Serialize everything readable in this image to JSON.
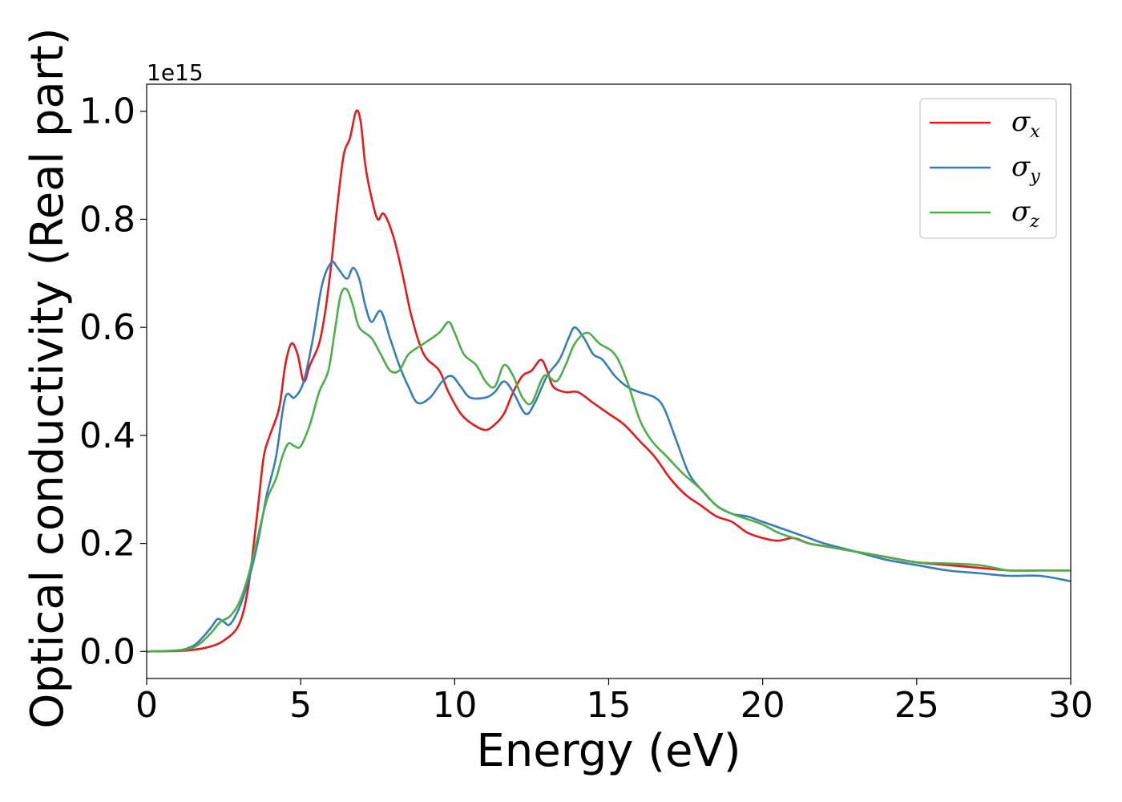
{
  "chart_data": {
    "type": "line",
    "xlabel": "Energy (eV)",
    "ylabel": "Optical conductivity (Real part)",
    "y_offset_label": "1e15",
    "xlim": [
      0,
      30
    ],
    "ylim": [
      -0.05,
      1.05
    ],
    "xticks": [
      0,
      5,
      10,
      15,
      20,
      25,
      30
    ],
    "yticks": [
      0.0,
      0.2,
      0.4,
      0.6,
      0.8,
      1.0
    ],
    "xtick_labels": [
      "0",
      "5",
      "10",
      "15",
      "20",
      "25",
      "30"
    ],
    "ytick_labels": [
      "0.0",
      "0.2",
      "0.4",
      "0.6",
      "0.8",
      "1.0"
    ],
    "grid": false,
    "legend_position": "top-right",
    "series": [
      {
        "symbol": "σ",
        "subscript": "x",
        "color": "#e41a1c",
        "points": [
          [
            0,
            0
          ],
          [
            1,
            0.001
          ],
          [
            1.5,
            0.003
          ],
          [
            2,
            0.008
          ],
          [
            2.5,
            0.02
          ],
          [
            3,
            0.05
          ],
          [
            3.3,
            0.12
          ],
          [
            3.6,
            0.26
          ],
          [
            3.8,
            0.36
          ],
          [
            4,
            0.4
          ],
          [
            4.3,
            0.45
          ],
          [
            4.5,
            0.53
          ],
          [
            4.7,
            0.57
          ],
          [
            4.9,
            0.55
          ],
          [
            5.1,
            0.5
          ],
          [
            5.3,
            0.53
          ],
          [
            5.6,
            0.57
          ],
          [
            5.8,
            0.63
          ],
          [
            6,
            0.72
          ],
          [
            6.2,
            0.83
          ],
          [
            6.4,
            0.92
          ],
          [
            6.6,
            0.95
          ],
          [
            6.8,
            1.0
          ],
          [
            6.95,
            0.98
          ],
          [
            7.1,
            0.9
          ],
          [
            7.3,
            0.84
          ],
          [
            7.5,
            0.8
          ],
          [
            7.7,
            0.81
          ],
          [
            8,
            0.77
          ],
          [
            8.3,
            0.7
          ],
          [
            8.6,
            0.62
          ],
          [
            9,
            0.55
          ],
          [
            9.5,
            0.52
          ],
          [
            9.8,
            0.48
          ],
          [
            10.2,
            0.44
          ],
          [
            10.6,
            0.42
          ],
          [
            11,
            0.41
          ],
          [
            11.3,
            0.42
          ],
          [
            11.6,
            0.44
          ],
          [
            11.9,
            0.48
          ],
          [
            12.2,
            0.51
          ],
          [
            12.5,
            0.52
          ],
          [
            12.8,
            0.54
          ],
          [
            13,
            0.52
          ],
          [
            13.2,
            0.49
          ],
          [
            13.6,
            0.48
          ],
          [
            14,
            0.48
          ],
          [
            14.5,
            0.46
          ],
          [
            15,
            0.44
          ],
          [
            15.5,
            0.42
          ],
          [
            16,
            0.39
          ],
          [
            16.5,
            0.36
          ],
          [
            17,
            0.32
          ],
          [
            17.5,
            0.29
          ],
          [
            18,
            0.27
          ],
          [
            18.5,
            0.25
          ],
          [
            19,
            0.24
          ],
          [
            19.5,
            0.22
          ],
          [
            20,
            0.21
          ],
          [
            20.5,
            0.205
          ],
          [
            21,
            0.21
          ],
          [
            21.5,
            0.2
          ],
          [
            22,
            0.195
          ],
          [
            23,
            0.185
          ],
          [
            24,
            0.175
          ],
          [
            25,
            0.165
          ],
          [
            26,
            0.16
          ],
          [
            27,
            0.155
          ],
          [
            28,
            0.15
          ],
          [
            29,
            0.15
          ],
          [
            30,
            0.15
          ]
        ]
      },
      {
        "symbol": "σ",
        "subscript": "y",
        "color": "#377eb8",
        "points": [
          [
            0,
            0
          ],
          [
            1,
            0.002
          ],
          [
            1.5,
            0.01
          ],
          [
            1.8,
            0.025
          ],
          [
            2.1,
            0.045
          ],
          [
            2.3,
            0.06
          ],
          [
            2.5,
            0.055
          ],
          [
            2.7,
            0.05
          ],
          [
            3,
            0.08
          ],
          [
            3.3,
            0.13
          ],
          [
            3.6,
            0.2
          ],
          [
            3.9,
            0.29
          ],
          [
            4.2,
            0.36
          ],
          [
            4.5,
            0.47
          ],
          [
            4.8,
            0.47
          ],
          [
            5.1,
            0.5
          ],
          [
            5.4,
            0.58
          ],
          [
            5.7,
            0.68
          ],
          [
            6,
            0.72
          ],
          [
            6.2,
            0.71
          ],
          [
            6.5,
            0.69
          ],
          [
            6.7,
            0.71
          ],
          [
            6.9,
            0.69
          ],
          [
            7.1,
            0.64
          ],
          [
            7.3,
            0.61
          ],
          [
            7.6,
            0.63
          ],
          [
            7.9,
            0.58
          ],
          [
            8.2,
            0.53
          ],
          [
            8.5,
            0.49
          ],
          [
            8.8,
            0.46
          ],
          [
            9.2,
            0.47
          ],
          [
            9.6,
            0.5
          ],
          [
            9.9,
            0.51
          ],
          [
            10.2,
            0.49
          ],
          [
            10.5,
            0.47
          ],
          [
            11,
            0.47
          ],
          [
            11.3,
            0.48
          ],
          [
            11.6,
            0.5
          ],
          [
            11.9,
            0.48
          ],
          [
            12.3,
            0.44
          ],
          [
            12.6,
            0.46
          ],
          [
            13,
            0.51
          ],
          [
            13.4,
            0.54
          ],
          [
            13.7,
            0.58
          ],
          [
            13.9,
            0.6
          ],
          [
            14.2,
            0.58
          ],
          [
            14.5,
            0.55
          ],
          [
            14.8,
            0.54
          ],
          [
            15.2,
            0.51
          ],
          [
            15.6,
            0.49
          ],
          [
            16,
            0.48
          ],
          [
            16.5,
            0.47
          ],
          [
            16.8,
            0.45
          ],
          [
            17.2,
            0.39
          ],
          [
            17.6,
            0.33
          ],
          [
            18,
            0.3
          ],
          [
            18.5,
            0.27
          ],
          [
            19,
            0.255
          ],
          [
            19.5,
            0.25
          ],
          [
            20,
            0.24
          ],
          [
            20.5,
            0.23
          ],
          [
            21,
            0.22
          ],
          [
            21.5,
            0.21
          ],
          [
            22,
            0.2
          ],
          [
            23,
            0.185
          ],
          [
            24,
            0.17
          ],
          [
            25,
            0.16
          ],
          [
            26,
            0.15
          ],
          [
            27,
            0.145
          ],
          [
            28,
            0.14
          ],
          [
            29,
            0.14
          ],
          [
            30,
            0.13
          ]
        ]
      },
      {
        "symbol": "σ",
        "subscript": "z",
        "color": "#4daf4a",
        "points": [
          [
            0,
            0
          ],
          [
            1,
            0.002
          ],
          [
            1.5,
            0.007
          ],
          [
            1.8,
            0.018
          ],
          [
            2.1,
            0.035
          ],
          [
            2.4,
            0.055
          ],
          [
            2.7,
            0.065
          ],
          [
            3,
            0.09
          ],
          [
            3.3,
            0.14
          ],
          [
            3.6,
            0.21
          ],
          [
            3.9,
            0.28
          ],
          [
            4.2,
            0.32
          ],
          [
            4.4,
            0.36
          ],
          [
            4.6,
            0.385
          ],
          [
            4.8,
            0.38
          ],
          [
            5,
            0.38
          ],
          [
            5.3,
            0.42
          ],
          [
            5.6,
            0.48
          ],
          [
            5.9,
            0.52
          ],
          [
            6.1,
            0.59
          ],
          [
            6.3,
            0.66
          ],
          [
            6.5,
            0.67
          ],
          [
            6.7,
            0.64
          ],
          [
            6.9,
            0.6
          ],
          [
            7.3,
            0.58
          ],
          [
            7.6,
            0.55
          ],
          [
            7.9,
            0.52
          ],
          [
            8.2,
            0.52
          ],
          [
            8.5,
            0.55
          ],
          [
            9,
            0.57
          ],
          [
            9.5,
            0.59
          ],
          [
            9.8,
            0.61
          ],
          [
            10,
            0.59
          ],
          [
            10.3,
            0.55
          ],
          [
            10.7,
            0.53
          ],
          [
            11,
            0.5
          ],
          [
            11.3,
            0.49
          ],
          [
            11.6,
            0.53
          ],
          [
            11.9,
            0.51
          ],
          [
            12.2,
            0.47
          ],
          [
            12.5,
            0.46
          ],
          [
            12.9,
            0.51
          ],
          [
            13.3,
            0.5
          ],
          [
            13.6,
            0.53
          ],
          [
            13.9,
            0.57
          ],
          [
            14.3,
            0.59
          ],
          [
            14.7,
            0.57
          ],
          [
            15.2,
            0.55
          ],
          [
            15.6,
            0.5
          ],
          [
            16,
            0.43
          ],
          [
            16.4,
            0.39
          ],
          [
            16.9,
            0.36
          ],
          [
            17.4,
            0.33
          ],
          [
            18,
            0.3
          ],
          [
            18.5,
            0.27
          ],
          [
            19,
            0.255
          ],
          [
            19.5,
            0.245
          ],
          [
            20,
            0.235
          ],
          [
            20.5,
            0.22
          ],
          [
            21,
            0.21
          ],
          [
            21.5,
            0.2
          ],
          [
            22,
            0.195
          ],
          [
            23,
            0.185
          ],
          [
            24,
            0.175
          ],
          [
            25,
            0.165
          ],
          [
            26,
            0.163
          ],
          [
            27,
            0.16
          ],
          [
            27.5,
            0.155
          ],
          [
            28,
            0.15
          ],
          [
            29,
            0.15
          ],
          [
            30,
            0.15
          ]
        ]
      }
    ]
  }
}
